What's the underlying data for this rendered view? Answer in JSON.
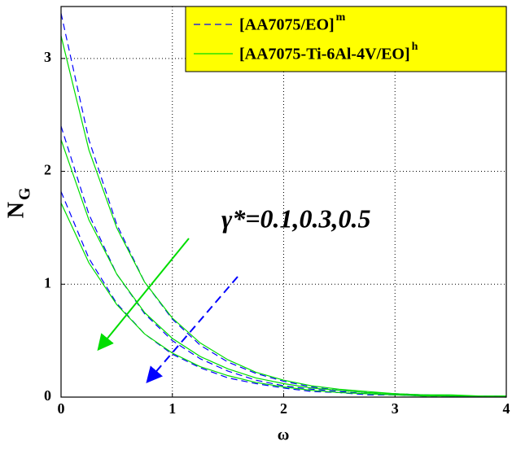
{
  "chart_data": {
    "type": "line",
    "x": [
      0,
      0.25,
      0.5,
      0.75,
      1,
      1.25,
      1.5,
      1.75,
      2,
      2.25,
      2.5,
      2.75,
      3,
      3.25,
      3.5,
      3.75,
      4
    ],
    "series": [
      {
        "name": "[AA7075/EO]",
        "superscript": "m",
        "color": "#0000ff",
        "dashed": true,
        "values": [
          3.4,
          2.28,
          1.53,
          1.02,
          0.69,
          0.46,
          0.31,
          0.21,
          0.14,
          0.09,
          0.06,
          0.04,
          0.03,
          0.02,
          0.01,
          0.01,
          0.01
        ]
      },
      {
        "name": "[AA7075-Ti-6Al-4V/EO]",
        "superscript": "h",
        "color": "#00dd00",
        "dashed": false,
        "values": [
          3.2,
          2.19,
          1.5,
          1.02,
          0.7,
          0.48,
          0.33,
          0.22,
          0.15,
          0.1,
          0.07,
          0.05,
          0.03,
          0.02,
          0.02,
          0.01,
          0.01
        ]
      },
      {
        "name": "[AA7075/EO]",
        "superscript": "m",
        "color": "#0000ff",
        "dashed": true,
        "values": [
          2.4,
          1.62,
          1.09,
          0.74,
          0.5,
          0.34,
          0.23,
          0.15,
          0.1,
          0.07,
          0.05,
          0.03,
          0.02,
          0.02,
          0.01,
          0.01,
          0
        ]
      },
      {
        "name": "[AA7075-Ti-6Al-4V/EO]",
        "superscript": "h",
        "color": "#00dd00",
        "dashed": false,
        "values": [
          2.28,
          1.57,
          1.09,
          0.75,
          0.52,
          0.36,
          0.25,
          0.17,
          0.12,
          0.08,
          0.06,
          0.04,
          0.03,
          0.02,
          0.01,
          0.01,
          0.01
        ]
      },
      {
        "name": "[AA7075/EO]",
        "superscript": "m",
        "color": "#0000ff",
        "dashed": true,
        "values": [
          1.82,
          1.23,
          0.83,
          0.56,
          0.38,
          0.26,
          0.17,
          0.12,
          0.08,
          0.05,
          0.04,
          0.02,
          0.02,
          0.01,
          0.01,
          0.01,
          0
        ]
      },
      {
        "name": "[AA7075-Ti-6Al-4V/EO]",
        "superscript": "h",
        "color": "#00dd00",
        "dashed": false,
        "values": [
          1.72,
          1.19,
          0.82,
          0.56,
          0.39,
          0.27,
          0.19,
          0.13,
          0.09,
          0.06,
          0.04,
          0.03,
          0.02,
          0.01,
          0.01,
          0.01,
          0
        ]
      }
    ],
    "xlabel": "ω",
    "ylabel": "N",
    "ylabel_subscript": "G",
    "annotation": "γ*=0.1,0.3,0.5",
    "xlim": [
      0,
      4
    ],
    "xticks": [
      0,
      1,
      2,
      3,
      4
    ],
    "ylim": [
      0,
      3.46
    ],
    "yticks": [
      0,
      1,
      2,
      3
    ],
    "grid": true,
    "legend": "upper right",
    "legend_color": "#ffff00"
  }
}
